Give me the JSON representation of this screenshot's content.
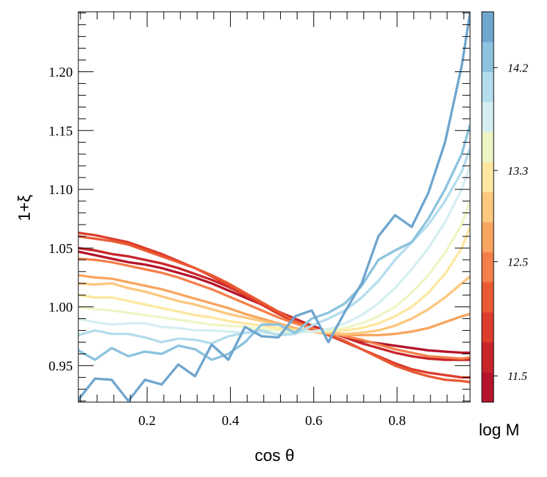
{
  "chart_data": {
    "type": "line",
    "xlabel": "cos θ",
    "ylabel": "1+ξ",
    "x": [
      0.035,
      0.075,
      0.115,
      0.155,
      0.195,
      0.235,
      0.275,
      0.315,
      0.355,
      0.395,
      0.435,
      0.475,
      0.515,
      0.555,
      0.595,
      0.635,
      0.675,
      0.715,
      0.755,
      0.795,
      0.835,
      0.875,
      0.915,
      0.955,
      0.975
    ],
    "xlim": [
      0.035,
      0.975
    ],
    "ylim": [
      0.919,
      1.251
    ],
    "xticks": [
      0.2,
      0.4,
      0.6,
      0.8
    ],
    "yticks": [
      0.95,
      {
        "value": 1.0,
        "label": "1.00"
      },
      1.05,
      {
        "value": 1.1,
        "label": "1.10"
      },
      1.15,
      {
        "value": 1.2,
        "label": "1.20"
      }
    ],
    "xminorticks": [
      0.04,
      0.08,
      0.12,
      0.16,
      0.24,
      0.28,
      0.32,
      0.36,
      0.44,
      0.48,
      0.52,
      0.56,
      0.64,
      0.68,
      0.72,
      0.76,
      0.84,
      0.88,
      0.92,
      0.96
    ],
    "yminorticks": [
      0.92,
      0.93,
      0.94,
      0.96,
      0.97,
      0.98,
      0.99,
      1.01,
      1.02,
      1.03,
      1.04,
      1.06,
      1.07,
      1.08,
      1.09,
      1.11,
      1.12,
      1.13,
      1.14,
      1.16,
      1.17,
      1.18,
      1.19,
      1.21,
      1.22,
      1.23,
      1.24,
      1.25
    ],
    "series": [
      {
        "color": "#b5152b",
        "values": [
          1.047,
          1.044,
          1.041,
          1.038,
          1.036,
          1.033,
          1.029,
          1.025,
          1.02,
          1.014,
          1.008,
          1.002,
          0.995,
          0.989,
          0.984,
          0.979,
          0.975,
          0.971,
          0.969,
          0.967,
          0.965,
          0.963,
          0.962,
          0.961,
          0.961
        ]
      },
      {
        "color": "#c8252b",
        "values": [
          1.05,
          1.048,
          1.045,
          1.043,
          1.04,
          1.037,
          1.033,
          1.028,
          1.023,
          1.017,
          1.01,
          1.003,
          0.996,
          0.99,
          0.984,
          0.979,
          0.974,
          0.969,
          0.965,
          0.961,
          0.958,
          0.956,
          0.955,
          0.955,
          0.955
        ]
      },
      {
        "color": "#dc3e2c",
        "values": [
          1.063,
          1.061,
          1.058,
          1.055,
          1.05,
          1.045,
          1.039,
          1.033,
          1.026,
          1.018,
          1.01,
          1.002,
          0.994,
          0.987,
          0.981,
          0.976,
          0.97,
          0.964,
          0.958,
          0.952,
          0.947,
          0.944,
          0.942,
          0.94,
          0.94
        ]
      },
      {
        "color": "#ea5a34",
        "values": [
          1.06,
          1.058,
          1.056,
          1.053,
          1.048,
          1.043,
          1.038,
          1.033,
          1.027,
          1.02,
          1.012,
          1.004,
          0.996,
          0.988,
          0.982,
          0.977,
          0.971,
          0.964,
          0.957,
          0.95,
          0.945,
          0.941,
          0.938,
          0.937,
          0.936
        ]
      },
      {
        "color": "#f47f4a",
        "values": [
          1.041,
          1.04,
          1.038,
          1.035,
          1.032,
          1.029,
          1.025,
          1.02,
          1.015,
          1.009,
          1.003,
          0.997,
          0.991,
          0.986,
          0.982,
          0.978,
          0.975,
          0.972,
          0.968,
          0.964,
          0.961,
          0.958,
          0.957,
          0.956,
          0.957
        ]
      },
      {
        "color": "#f9a55f",
        "values": [
          1.027,
          1.025,
          1.024,
          1.021,
          1.018,
          1.015,
          1.011,
          1.007,
          1.003,
          0.999,
          0.994,
          0.99,
          0.986,
          0.982,
          0.979,
          0.977,
          0.976,
          0.976,
          0.976,
          0.977,
          0.979,
          0.982,
          0.987,
          0.992,
          0.994
        ]
      },
      {
        "color": "#fdc77e",
        "values": [
          1.02,
          1.019,
          1.02,
          1.016,
          1.013,
          1.009,
          1.005,
          1.002,
          0.998,
          0.994,
          0.991,
          0.988,
          0.985,
          0.981,
          0.979,
          0.978,
          0.977,
          0.978,
          0.98,
          0.984,
          0.99,
          0.998,
          1.008,
          1.02,
          1.026
        ]
      },
      {
        "color": "#fde7a0",
        "values": [
          1.01,
          1.008,
          1.008,
          1.005,
          1.002,
          0.999,
          0.996,
          0.993,
          0.991,
          0.988,
          0.986,
          0.984,
          0.982,
          0.98,
          0.979,
          0.979,
          0.98,
          0.982,
          0.986,
          0.992,
          1.0,
          1.012,
          1.028,
          1.05,
          1.068
        ]
      },
      {
        "color": "#eef5c4",
        "values": [
          1.0,
          0.998,
          0.997,
          0.995,
          0.993,
          0.991,
          0.989,
          0.987,
          0.985,
          0.984,
          0.983,
          0.981,
          0.98,
          0.979,
          0.979,
          0.98,
          0.982,
          0.986,
          0.992,
          1.0,
          1.012,
          1.027,
          1.046,
          1.07,
          1.09
        ]
      },
      {
        "color": "#d6eef0",
        "values": [
          0.99,
          0.987,
          0.985,
          0.986,
          0.986,
          0.983,
          0.982,
          0.98,
          0.98,
          0.979,
          0.978,
          0.978,
          0.977,
          0.978,
          0.979,
          0.981,
          0.986,
          0.993,
          1.003,
          1.016,
          1.032,
          1.05,
          1.072,
          1.1,
          1.12
        ]
      },
      {
        "color": "#b4dded",
        "values": [
          0.976,
          0.98,
          0.977,
          0.977,
          0.974,
          0.97,
          0.973,
          0.972,
          0.969,
          0.975,
          0.978,
          0.98,
          0.976,
          0.977,
          0.984,
          0.99,
          0.997,
          1.008,
          1.022,
          1.04,
          1.055,
          1.07,
          1.09,
          1.115,
          1.135
        ]
      },
      {
        "color": "#8cc3df",
        "values": [
          0.963,
          0.955,
          0.965,
          0.958,
          0.962,
          0.96,
          0.967,
          0.964,
          0.955,
          0.96,
          0.97,
          0.985,
          0.985,
          0.978,
          0.99,
          0.995,
          1.003,
          1.018,
          1.04,
          1.048,
          1.055,
          1.075,
          1.1,
          1.13,
          1.155
        ]
      },
      {
        "color": "#6fa6cf",
        "values": [
          0.921,
          0.939,
          0.938,
          0.92,
          0.938,
          0.934,
          0.951,
          0.941,
          0.968,
          0.955,
          0.983,
          0.975,
          0.974,
          0.992,
          0.997,
          0.97,
          0.996,
          1.02,
          1.06,
          1.078,
          1.068,
          1.097,
          1.14,
          1.205,
          1.25
        ]
      }
    ],
    "colorbar": {
      "label": "log M",
      "colors": [
        "#b5152b",
        "#c8252b",
        "#dc3e2c",
        "#ea5a34",
        "#f47f4a",
        "#f9a55f",
        "#fdc77e",
        "#fde7a0",
        "#eef5c4",
        "#d6eef0",
        "#b4dded",
        "#8cc3df",
        "#6fa6cf"
      ],
      "clim": [
        11.27,
        14.69
      ],
      "ticks": [
        11.5,
        12.5,
        13.3,
        14.2
      ]
    }
  }
}
